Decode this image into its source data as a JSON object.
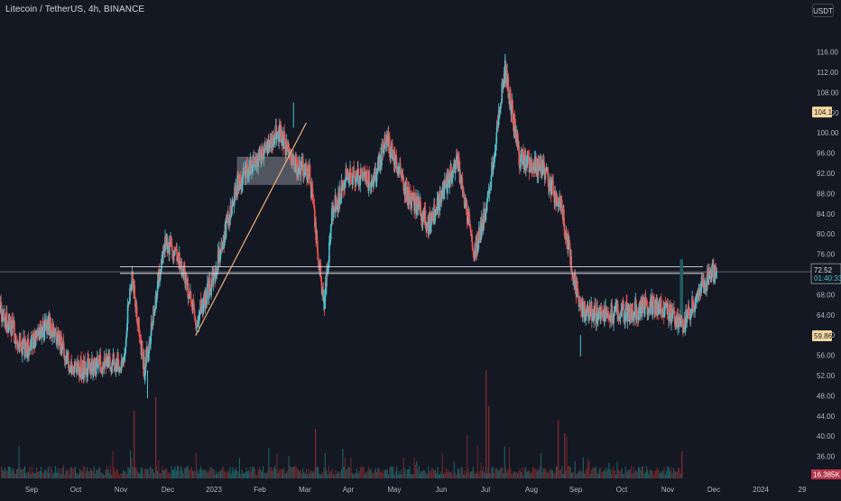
{
  "header": {
    "symbol_title": "Litecoin / TetherUS, 4h, BINANCE",
    "currency_button": "USDT"
  },
  "colors": {
    "background": "#141823",
    "up": "#4fc3cf",
    "down": "#ef5350",
    "volume_up": "#1d6b6e",
    "volume_down": "#7a2a2e",
    "trendline": "#f0b27a",
    "zone": "#9aa0aa",
    "price_badge": "#f5d7a1",
    "volume_badge": "#b5344a",
    "axis_text": "#b2b5be"
  },
  "chart_data": {
    "type": "candlestick",
    "title": "Litecoin / TetherUS, 4h, BINANCE",
    "y_unit": "USDT",
    "ylim": [
      34.5,
      119.5
    ],
    "y_ticks": [
      "116.00",
      "112.00",
      "108.00",
      "104.00",
      "100.00",
      "96.00",
      "92.00",
      "88.00",
      "84.00",
      "80.00",
      "76.00",
      "72.00",
      "68.00",
      "64.00",
      "60.00",
      "56.00",
      "52.00",
      "48.00",
      "44.00",
      "40.00",
      "36.00"
    ],
    "x_ticks": [
      "Sep",
      "Oct",
      "Nov",
      "Dec",
      "2023",
      "Feb",
      "Mar",
      "Apr",
      "May",
      "Jun",
      "Jul",
      "Aug",
      "Sep",
      "Oct",
      "Nov",
      "Dec",
      "2024",
      "29"
    ],
    "price_path": [
      [
        "2022-08-20",
        65
      ],
      [
        "2022-09-05",
        57
      ],
      [
        "2022-09-20",
        62
      ],
      [
        "2022-10-05",
        53
      ],
      [
        "2022-10-20",
        54
      ],
      [
        "2022-11-05",
        55
      ],
      [
        "2022-11-10",
        72
      ],
      [
        "2022-11-18",
        53
      ],
      [
        "2022-12-01",
        79
      ],
      [
        "2022-12-10",
        75
      ],
      [
        "2022-12-20",
        63
      ],
      [
        "2022-12-31",
        71
      ],
      [
        "2023-01-15",
        90
      ],
      [
        "2023-01-30",
        96
      ],
      [
        "2023-02-10",
        100
      ],
      [
        "2023-02-20",
        94
      ],
      [
        "2023-03-01",
        92
      ],
      [
        "2023-03-10",
        65
      ],
      [
        "2023-03-15",
        84
      ],
      [
        "2023-03-25",
        92
      ],
      [
        "2023-04-10",
        90
      ],
      [
        "2023-04-18",
        99
      ],
      [
        "2023-05-01",
        88
      ],
      [
        "2023-05-15",
        82
      ],
      [
        "2023-06-01",
        95
      ],
      [
        "2023-06-12",
        76
      ],
      [
        "2023-06-20",
        86
      ],
      [
        "2023-07-01",
        113
      ],
      [
        "2023-07-10",
        95
      ],
      [
        "2023-07-25",
        93
      ],
      [
        "2023-08-05",
        85
      ],
      [
        "2023-08-17",
        65
      ],
      [
        "2023-09-01",
        64
      ],
      [
        "2023-09-20",
        65
      ],
      [
        "2023-10-05",
        66
      ],
      [
        "2023-10-20",
        62
      ],
      [
        "2023-11-01",
        70
      ],
      [
        "2023-11-10",
        73
      ]
    ],
    "annotations": {
      "trendline": {
        "from": [
          "2022-12-20",
          59.9
        ],
        "to": [
          "2023-02-27",
          102
        ]
      },
      "zone": {
        "x_start": "2023-01-15",
        "x_end": "2023-02-24",
        "y_low": 89.8,
        "y_high": 95.2
      },
      "support_lines": [
        73.5,
        72.2
      ],
      "price_labels": {
        "high_marker": "104.12",
        "low_marker": "59.86"
      }
    },
    "last_price": "72.52",
    "countdown": "01:40:33",
    "volume_label": "16.385K",
    "grid": false,
    "legend": "none"
  }
}
